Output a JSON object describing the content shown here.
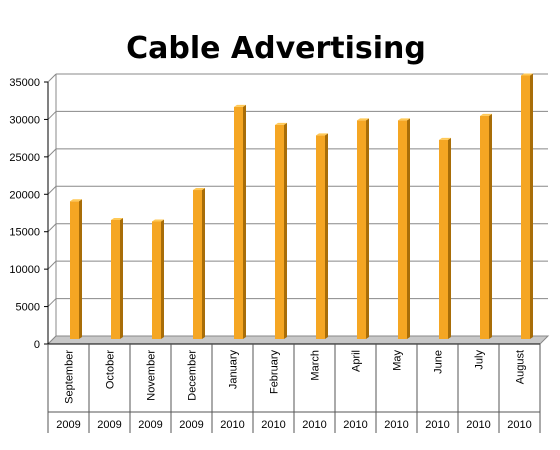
{
  "chart_data": {
    "type": "bar",
    "title": "Cable Advertising",
    "xlabel": "",
    "ylabel": "",
    "ylim": [
      0,
      35000
    ],
    "yticks": [
      0,
      5000,
      10000,
      15000,
      20000,
      25000,
      30000,
      35000
    ],
    "grid": true,
    "legend": "none",
    "categories": [
      "September",
      "October",
      "November",
      "December",
      "January",
      "February",
      "March",
      "April",
      "May",
      "June",
      "July",
      "August"
    ],
    "years": [
      "2009",
      "2009",
      "2009",
      "2009",
      "2010",
      "2010",
      "2010",
      "2010",
      "2010",
      "2010",
      "2010",
      "2010"
    ],
    "values": [
      18000,
      15500,
      15300,
      19500,
      30600,
      28200,
      26800,
      28800,
      28800,
      26200,
      29400,
      34800
    ],
    "colors": {
      "bar": "#F5A623",
      "bar_side": "#A86D08",
      "bar_top": "#FFC957",
      "grid": "#888888",
      "axis": "#000000",
      "floor": "#C8C8C8"
    }
  }
}
